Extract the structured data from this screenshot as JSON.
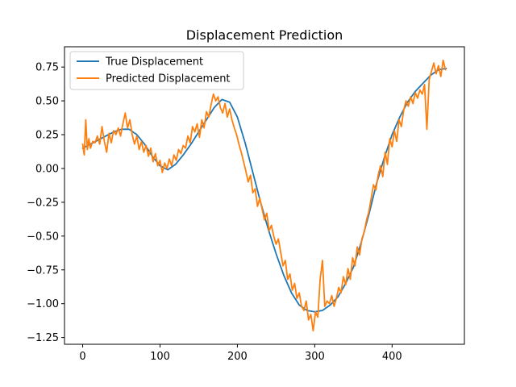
{
  "chart_data": {
    "type": "line",
    "title": "Displacement Prediction",
    "xlabel": "",
    "ylabel": "",
    "xlim": [
      -23.5,
      493.5
    ],
    "ylim": [
      -1.3,
      0.9
    ],
    "x_ticks": [
      0,
      100,
      200,
      300,
      400
    ],
    "y_ticks": [
      -1.25,
      -1.0,
      -0.75,
      -0.5,
      -0.25,
      0.0,
      0.25,
      0.5,
      0.75
    ],
    "x_tick_labels": [
      "0",
      "100",
      "200",
      "300",
      "400"
    ],
    "y_tick_labels": [
      "−1.25",
      "−1.00",
      "−0.75",
      "−0.50",
      "−0.25",
      "0.00",
      "0.25",
      "0.50",
      "0.75"
    ],
    "grid": false,
    "legend": "upper left",
    "series": [
      {
        "name": "True Displacement",
        "color": "#1f77b4",
        "x": [
          0,
          10,
          20,
          30,
          40,
          50,
          60,
          70,
          80,
          90,
          100,
          110,
          120,
          130,
          140,
          150,
          160,
          170,
          180,
          190,
          200,
          210,
          220,
          230,
          240,
          250,
          260,
          270,
          280,
          290,
          300,
          310,
          320,
          330,
          340,
          350,
          360,
          370,
          380,
          390,
          400,
          410,
          420,
          430,
          440,
          450,
          460,
          470
        ],
        "y": [
          0.15,
          0.18,
          0.21,
          0.24,
          0.27,
          0.29,
          0.29,
          0.25,
          0.18,
          0.09,
          0.02,
          -0.01,
          0.03,
          0.1,
          0.18,
          0.27,
          0.36,
          0.45,
          0.51,
          0.49,
          0.38,
          0.19,
          -0.03,
          -0.25,
          -0.45,
          -0.63,
          -0.79,
          -0.92,
          -1.01,
          -1.05,
          -1.06,
          -1.05,
          -1.01,
          -0.95,
          -0.85,
          -0.73,
          -0.55,
          -0.34,
          -0.11,
          0.08,
          0.25,
          0.38,
          0.49,
          0.57,
          0.63,
          0.69,
          0.73,
          0.74
        ]
      },
      {
        "name": "Predicted Displacement",
        "color": "#ff7f0e",
        "x": [
          0,
          2,
          4,
          6,
          8,
          10,
          13,
          16,
          19,
          22,
          25,
          28,
          31,
          34,
          37,
          40,
          43,
          46,
          49,
          52,
          55,
          58,
          61,
          64,
          67,
          70,
          73,
          76,
          79,
          82,
          85,
          88,
          91,
          94,
          97,
          100,
          103,
          106,
          109,
          112,
          115,
          118,
          121,
          124,
          127,
          130,
          133,
          136,
          139,
          142,
          145,
          148,
          151,
          154,
          157,
          160,
          163,
          166,
          169,
          172,
          175,
          178,
          181,
          184,
          187,
          190,
          193,
          196,
          199,
          202,
          205,
          208,
          211,
          214,
          217,
          220,
          223,
          226,
          229,
          232,
          235,
          238,
          241,
          244,
          247,
          250,
          253,
          256,
          259,
          262,
          265,
          268,
          271,
          274,
          277,
          280,
          283,
          286,
          289,
          292,
          295,
          298,
          301,
          304,
          307,
          310,
          313,
          316,
          319,
          322,
          325,
          328,
          331,
          334,
          337,
          340,
          343,
          346,
          349,
          352,
          355,
          358,
          361,
          364,
          367,
          370,
          373,
          376,
          379,
          382,
          385,
          388,
          391,
          394,
          397,
          400,
          403,
          406,
          409,
          412,
          415,
          418,
          421,
          424,
          427,
          430,
          433,
          436,
          439,
          442,
          445,
          448,
          451,
          454,
          457,
          460,
          463,
          466,
          469
        ],
        "y": [
          0.18,
          0.1,
          0.36,
          0.14,
          0.22,
          0.15,
          0.2,
          0.19,
          0.24,
          0.18,
          0.31,
          0.2,
          0.12,
          0.26,
          0.19,
          0.28,
          0.25,
          0.3,
          0.24,
          0.33,
          0.41,
          0.3,
          0.36,
          0.25,
          0.18,
          0.24,
          0.14,
          0.2,
          0.12,
          0.17,
          0.09,
          0.15,
          0.05,
          0.11,
          0.02,
          0.06,
          -0.03,
          0.04,
          0.0,
          0.07,
          0.02,
          0.1,
          0.06,
          0.14,
          0.11,
          0.17,
          0.15,
          0.24,
          0.19,
          0.31,
          0.27,
          0.33,
          0.23,
          0.36,
          0.3,
          0.42,
          0.38,
          0.47,
          0.55,
          0.5,
          0.53,
          0.45,
          0.41,
          0.48,
          0.38,
          0.44,
          0.36,
          0.3,
          0.25,
          0.18,
          0.12,
          0.05,
          -0.02,
          -0.1,
          -0.05,
          -0.18,
          -0.15,
          -0.28,
          -0.22,
          -0.3,
          -0.38,
          -0.33,
          -0.46,
          -0.42,
          -0.5,
          -0.56,
          -0.52,
          -0.62,
          -0.72,
          -0.68,
          -0.82,
          -0.78,
          -0.9,
          -0.85,
          -0.96,
          -0.92,
          -1.02,
          -1.05,
          -0.98,
          -1.12,
          -1.08,
          -1.2,
          -1.06,
          -1.1,
          -0.82,
          -0.68,
          -1.02,
          -0.98,
          -1.0,
          -0.94,
          -1.02,
          -0.96,
          -0.88,
          -0.92,
          -0.8,
          -0.86,
          -0.74,
          -0.82,
          -0.66,
          -0.72,
          -0.58,
          -0.64,
          -0.52,
          -0.47,
          -0.38,
          -0.32,
          -0.22,
          -0.12,
          -0.16,
          -0.05,
          0.02,
          -0.06,
          0.12,
          0.03,
          0.22,
          0.16,
          0.28,
          0.2,
          0.36,
          0.31,
          0.43,
          0.5,
          0.46,
          0.53,
          0.48,
          0.56,
          0.52,
          0.58,
          0.55,
          0.62,
          0.29,
          0.66,
          0.72,
          0.78,
          0.7,
          0.76,
          0.68,
          0.8,
          0.73
        ]
      }
    ]
  }
}
